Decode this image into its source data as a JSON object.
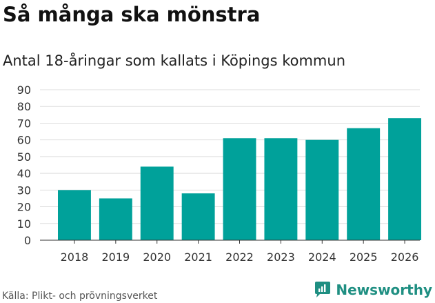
{
  "title": "Så många ska mönstra",
  "subtitle": "Antal 18-åringar som kallats i Köpings kommun",
  "source": "Källa: Plikt- och prövningsverket",
  "brand": {
    "name": "Newsworthy",
    "icon": "newsworthy-logo-icon",
    "color": "#1f8f82"
  },
  "colors": {
    "bar": "#00a19a",
    "grid": "#dddddd",
    "axis": "#333333"
  },
  "chart_data": {
    "type": "bar",
    "title": "Så många ska mönstra",
    "subtitle": "Antal 18-åringar som kallats i Köpings kommun",
    "xlabel": "",
    "ylabel": "",
    "categories": [
      "2018",
      "2019",
      "2020",
      "2021",
      "2022",
      "2023",
      "2024",
      "2025",
      "2026"
    ],
    "values": [
      30,
      25,
      44,
      28,
      61,
      61,
      60,
      67,
      73
    ],
    "ylim": [
      0,
      90
    ],
    "yticks": [
      0,
      10,
      20,
      30,
      40,
      50,
      60,
      70,
      80,
      90
    ],
    "grid": true,
    "legend": "none"
  }
}
